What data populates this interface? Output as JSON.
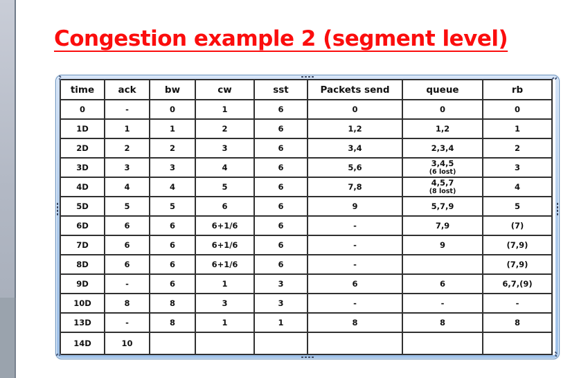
{
  "slide": {
    "title": "Congestion example 2 (segment level)"
  },
  "table": {
    "columns": [
      "time",
      "ack",
      "bw",
      "cw",
      "sst",
      "Packets send",
      "queue",
      "rb"
    ],
    "rows": [
      [
        "0",
        "-",
        "0",
        "1",
        "6",
        "0",
        "0",
        "0"
      ],
      [
        "1D",
        "1",
        "1",
        "2",
        "6",
        "1,2",
        "1,2",
        "1"
      ],
      [
        "2D",
        "2",
        "2",
        "3",
        "6",
        "3,4",
        "2,3,4",
        "2"
      ],
      [
        "3D",
        "3",
        "3",
        "4",
        "6",
        "5,6",
        {
          "main": "3,4,5",
          "note": "(6 lost)"
        },
        "3"
      ],
      [
        "4D",
        "4",
        "4",
        "5",
        "6",
        "7,8",
        {
          "main": "4,5,7",
          "note": "(8 lost)"
        },
        "4"
      ],
      [
        "5D",
        "5",
        "5",
        "6",
        "6",
        "9",
        "5,7,9",
        "5"
      ],
      [
        "6D",
        "6",
        "6",
        "6+1/6",
        "6",
        "-",
        "7,9",
        "(7)"
      ],
      [
        "7D",
        "6",
        "6",
        "6+1/6",
        "6",
        "-",
        "9",
        "(7,9)"
      ],
      [
        "8D",
        "6",
        "6",
        "6+1/6",
        "6",
        "-",
        "",
        "(7,9)"
      ],
      [
        "9D",
        "-",
        "6",
        "1",
        "3",
        "6",
        "6",
        "6,7,(9)"
      ],
      [
        "10D",
        "8",
        "8",
        "3",
        "3",
        "-",
        "-",
        "-"
      ],
      [
        "13D",
        "-",
        "8",
        "1",
        "1",
        "8",
        "8",
        "8"
      ],
      [
        "14D",
        "10",
        "",
        "",
        "",
        "",
        "",
        ""
      ]
    ]
  },
  "colors": {
    "title_red": "#fb0d0d",
    "frame_blue": "#aecbec",
    "table_border": "#303030"
  }
}
